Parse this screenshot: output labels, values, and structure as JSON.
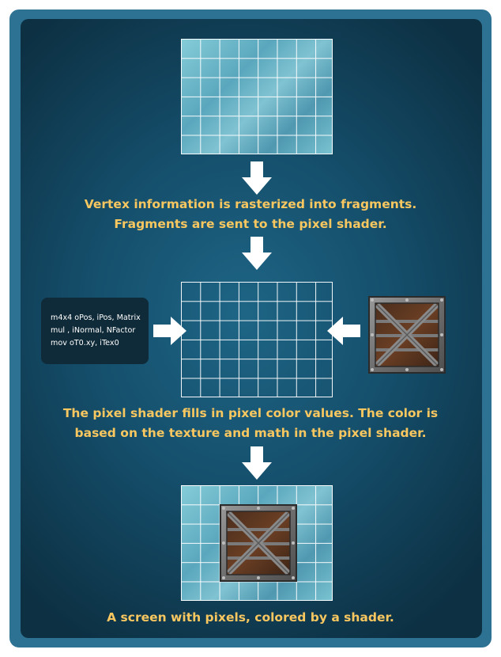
{
  "steps": {
    "rasterize": {
      "line1": "Vertex information is rasterized into fragments.",
      "line2": "Fragments are sent to the pixel shader."
    },
    "shade": {
      "line1": "The pixel shader fills in pixel color values. The color is",
      "line2": "based on the texture and math in the pixel shader."
    },
    "result": {
      "line1": "A screen with pixels, colored by a shader."
    }
  },
  "shader_code": {
    "lines": [
      "m4x4 oPos, iPos, Matrix",
      "mul , iNormal, NFactor",
      "mov oT0.xy, iTex0"
    ]
  },
  "icons": {
    "arrow": "down-arrow-icon",
    "crate": "wooden-crate-texture-icon"
  },
  "colors": {
    "caption": "#f8c760",
    "grid_fill": "#6db6c7",
    "panel": "#15506d",
    "frame": "#2d7293"
  }
}
